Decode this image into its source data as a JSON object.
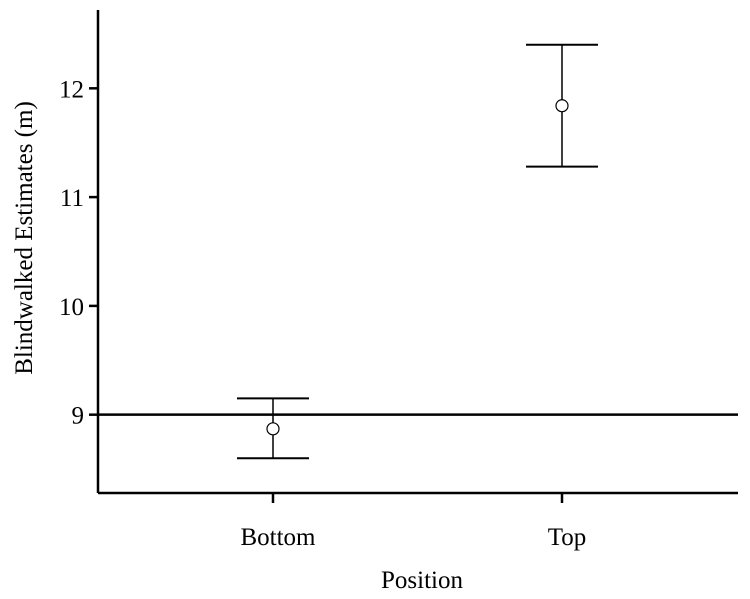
{
  "chart_data": {
    "type": "scatter",
    "title": "",
    "xlabel": "Position",
    "ylabel": "Blindwalked Estimates (m)",
    "categories": [
      "Bottom",
      "Top"
    ],
    "means": [
      8.87,
      11.84
    ],
    "error_low": [
      8.6,
      11.28
    ],
    "error_high": [
      9.15,
      12.4
    ],
    "ylim": [
      8.28,
      12.72
    ],
    "yticks": [
      "9",
      "10",
      "11",
      "12"
    ],
    "reference_line": 9,
    "grid": false,
    "legend": "none"
  }
}
